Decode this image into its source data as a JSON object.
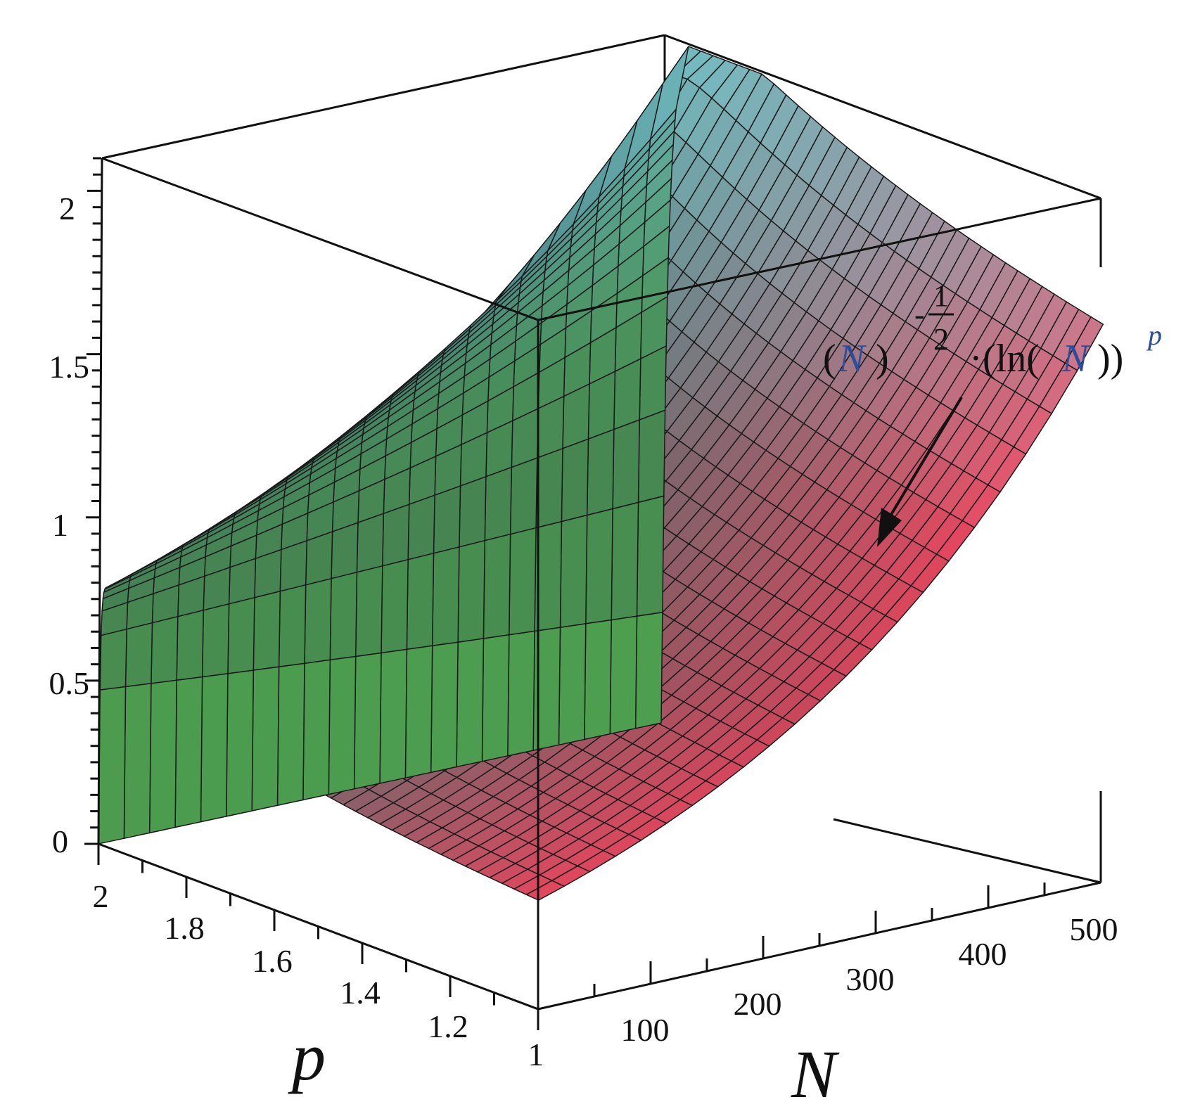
{
  "chart_data": {
    "type": "surface",
    "function_label": {
      "base_open": "(",
      "base_var": "N",
      "base_close": ")",
      "exp_sign": "-",
      "exp_num": "1",
      "exp_den": "2",
      "dot": "·",
      "ln_text": "(ln(",
      "ln_var": "N",
      "ln_close": "))",
      "power": "p"
    },
    "x_axis": {
      "label": "N",
      "range": [
        1,
        500
      ],
      "tick_labels": [
        "1",
        "100",
        "200",
        "300",
        "400",
        "500"
      ],
      "tick_values": [
        1,
        100,
        200,
        300,
        400,
        500
      ]
    },
    "y_axis": {
      "label": "p",
      "range": [
        1.1,
        2
      ],
      "tick_labels": [
        "2",
        "1.8",
        "1.6",
        "1.4",
        "1.2"
      ],
      "tick_values": [
        2,
        1.8,
        1.6,
        1.4,
        1.2
      ]
    },
    "z_axis": {
      "label": "",
      "range": [
        0,
        2.1
      ],
      "tick_labels": [
        "0",
        "0.5",
        "1",
        "1.5",
        "2"
      ],
      "tick_values": [
        0,
        0.5,
        1,
        1.5,
        2
      ]
    },
    "formula": "N^(-1/2) * (ln N)^p",
    "grid": true,
    "box": true,
    "colors": {
      "low_N": "#4fc04a",
      "peak": "#7fd9e0",
      "mid": "#3d5f5a",
      "high_N": "#ec3f5f",
      "trough": "#5a3a70"
    }
  }
}
